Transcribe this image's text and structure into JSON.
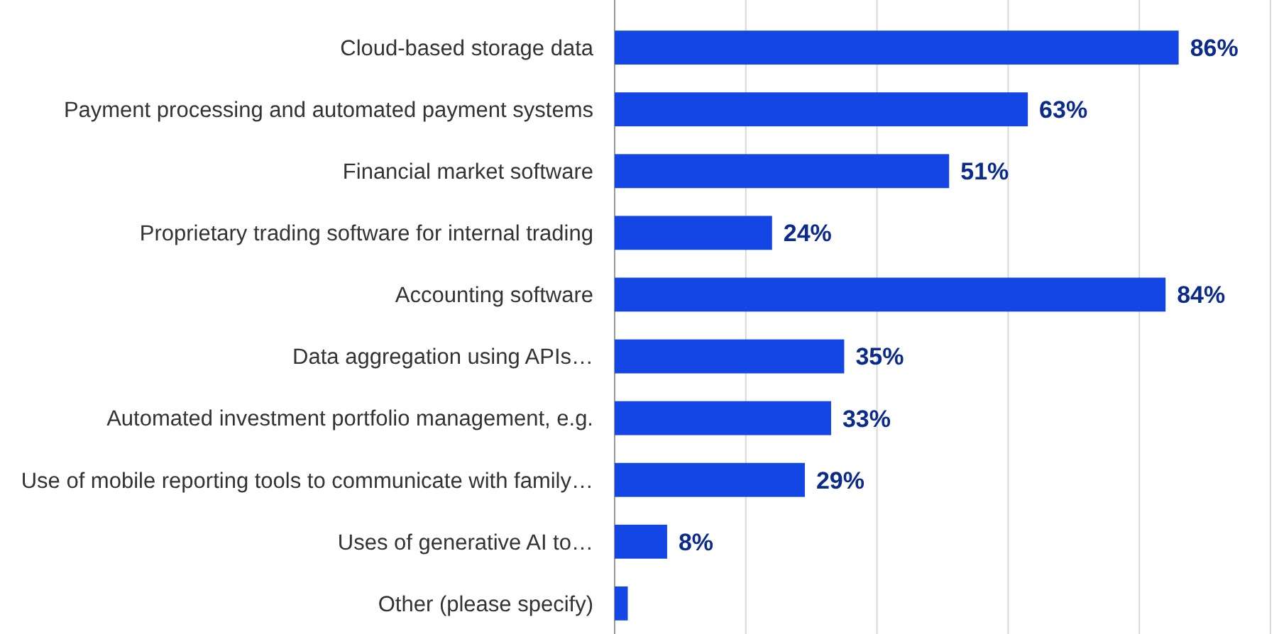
{
  "chart_data": {
    "type": "bar",
    "orientation": "horizontal",
    "categories": [
      "Cloud-based storage data",
      "Payment processing and automated payment systems",
      "Financial market software",
      "Proprietary trading software for internal trading",
      "Accounting software",
      "Data aggregation using APIs…",
      "Automated investment portfolio management, e.g.",
      "Use of mobile reporting tools to communicate with family…",
      "Uses of generative AI to…",
      "Other (please specify)"
    ],
    "values": [
      86,
      63,
      51,
      24,
      84,
      35,
      33,
      29,
      8,
      2
    ],
    "value_labels": [
      "86%",
      "63%",
      "51%",
      "24%",
      "84%",
      "35%",
      "33%",
      "29%",
      "8%",
      null
    ],
    "color": "#1446e6",
    "xlim": [
      0,
      100
    ],
    "xticks": [
      {
        "value": 0,
        "label": null
      },
      {
        "value": 20,
        "label": null
      },
      {
        "value": 40,
        "label": null
      },
      {
        "value": 60,
        "label": null
      },
      {
        "value": 80,
        "label": null
      },
      {
        "value": 100,
        "label": null
      }
    ],
    "grid": "x",
    "tick_labels": "y"
  }
}
